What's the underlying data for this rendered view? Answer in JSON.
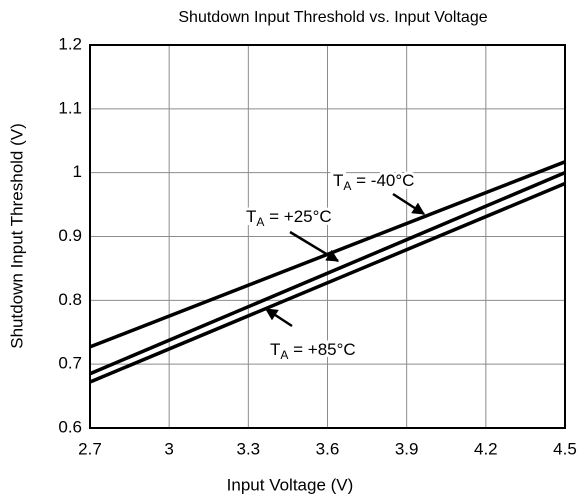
{
  "chart_data": {
    "type": "line",
    "title": "Shutdown Input Threshold vs. Input Voltage",
    "x_label": "Input Voltage (V)",
    "y_label": "Shutdown Input Threshold (V)",
    "x": [
      2.7,
      4.5
    ],
    "series": [
      {
        "name": "TA = -40°C",
        "color": "#000000",
        "values": [
          0.727,
          1.017
        ]
      },
      {
        "name": "TA = +25°C",
        "color": "#000000",
        "values": [
          0.685,
          1.0
        ]
      },
      {
        "name": "TA = +85°C",
        "color": "#000000",
        "values": [
          0.672,
          0.983
        ]
      }
    ],
    "xlim": [
      2.7,
      4.5
    ],
    "xticks": [
      2.7,
      3,
      3.3,
      3.6,
      3.9,
      4.2,
      4.5
    ],
    "ylim": [
      0.6,
      1.2
    ],
    "yticks": [
      0.6,
      0.7,
      0.8,
      0.9,
      1,
      1.1,
      1.2
    ],
    "grid": true
  }
}
